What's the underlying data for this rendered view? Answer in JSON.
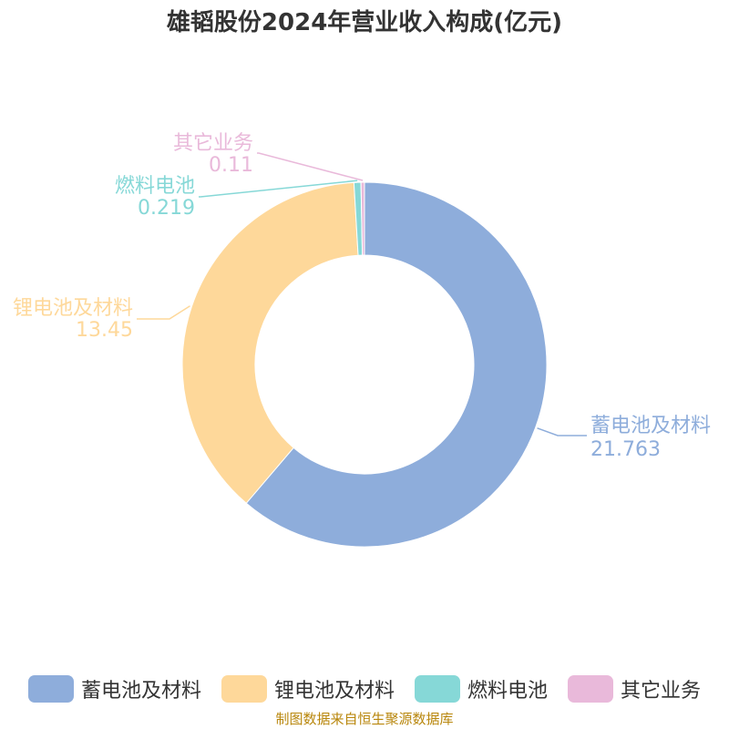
{
  "chart_data": {
    "type": "pie",
    "title": "雄韬股份2024年营业收入构成(亿元)",
    "categories": [
      "蓄电池及材料",
      "锂电池及材料",
      "燃料电池",
      "其它业务"
    ],
    "values": [
      21.763,
      13.45,
      0.219,
      0.11
    ],
    "value_labels": [
      "21.763",
      "13.45",
      "0.219",
      "0.11"
    ],
    "colors": [
      "#8eaddb",
      "#fed89a",
      "#86d8d7",
      "#e9b9da"
    ],
    "donut": true,
    "legend_position": "bottom"
  },
  "source": "制图数据来自恒生聚源数据库"
}
